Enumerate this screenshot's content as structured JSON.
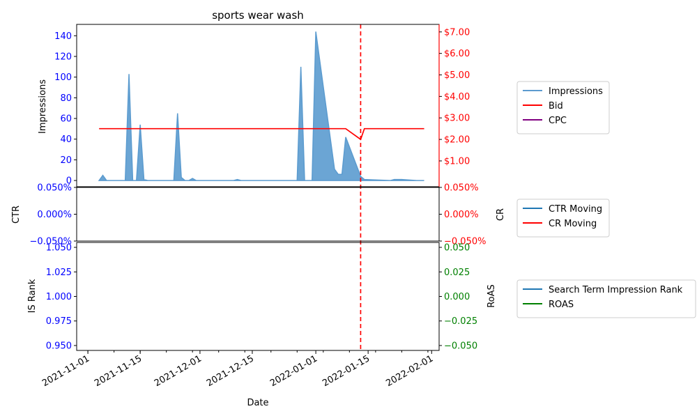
{
  "chart_data": {
    "type": "area",
    "title": "sports wear wash",
    "xlabel": "Date",
    "x_ticks": [
      "2021-11-01",
      "2021-11-15",
      "2021-12-01",
      "2021-12-15",
      "2022-01-01",
      "2022-01-15",
      "2022-02-01"
    ],
    "vline_date": "2022-01-13",
    "panels": [
      {
        "id": "top",
        "left_label": "Impressions",
        "left_ylim": [
          -6,
          151
        ],
        "left_ticks": [
          0,
          20,
          40,
          60,
          80,
          100,
          120,
          140
        ],
        "left_tick_labels": [
          "0",
          "20",
          "40",
          "60",
          "80",
          "100",
          "120",
          "140"
        ],
        "right_ylim": [
          -0.2,
          7.35
        ],
        "right_ticks": [
          1,
          2,
          3,
          4,
          5,
          6,
          7
        ],
        "right_tick_labels": [
          "$1.00",
          "$2.00",
          "$3.00",
          "$4.00",
          "$5.00",
          "$6.00",
          "$7.00"
        ],
        "series": [
          {
            "name": "Impressions",
            "type": "area",
            "color": "#5b9bcf",
            "axis": "left",
            "x": [
              "2021-11-04",
              "2021-11-05",
              "2021-11-06",
              "2021-11-07",
              "2021-11-11",
              "2021-11-12",
              "2021-11-13",
              "2021-11-14",
              "2021-11-15",
              "2021-11-16",
              "2021-11-17",
              "2021-11-24",
              "2021-11-25",
              "2021-11-26",
              "2021-11-27",
              "2021-11-28",
              "2021-11-29",
              "2021-11-30",
              "2021-12-10",
              "2021-12-11",
              "2021-12-12",
              "2021-12-27",
              "2021-12-28",
              "2021-12-29",
              "2021-12-31",
              "2022-01-01",
              "2022-01-06",
              "2022-01-07",
              "2022-01-08",
              "2022-01-09",
              "2022-01-13",
              "2022-01-14",
              "2022-01-21",
              "2022-01-22",
              "2022-01-24",
              "2022-01-28",
              "2022-01-30"
            ],
            "y": [
              0,
              5,
              0,
              0,
              0,
              103,
              0,
              0,
              54,
              1,
              0,
              0,
              65,
              3,
              0,
              0,
              2,
              0,
              0,
              1,
              0,
              0,
              110,
              0,
              0,
              144,
              11,
              6,
              6,
              42,
              4,
              1,
              0,
              1,
              1,
              0,
              0
            ]
          },
          {
            "name": "Bid",
            "type": "line",
            "color": "#ff0000",
            "axis": "right",
            "x": [
              "2021-11-04",
              "2022-01-09",
              "2022-01-13",
              "2022-01-14",
              "2022-01-30"
            ],
            "y": [
              2.5,
              2.5,
              2.0,
              2.5,
              2.5
            ]
          },
          {
            "name": "CPC",
            "type": "line",
            "color": "#800080",
            "axis": "right",
            "x": [],
            "y": []
          }
        ],
        "legend": [
          "Impressions",
          "Bid",
          "CPC"
        ]
      },
      {
        "id": "mid",
        "left_label": "CTR",
        "right_label": "CR",
        "left_ylim": [
          -0.05,
          0.05
        ],
        "left_tick_labels": [
          "−0.050%",
          "0.000%",
          "0.050%"
        ],
        "right_ylim": [
          -0.05,
          0.05
        ],
        "right_tick_labels": [
          "−0.050%",
          "0.000%",
          "0.050%"
        ],
        "series": [
          {
            "name": "CTR Moving",
            "type": "line",
            "color": "#1f77b4",
            "x": [],
            "y": []
          },
          {
            "name": "CR Moving",
            "type": "line",
            "color": "#ff0000",
            "x": [],
            "y": []
          }
        ],
        "legend": [
          "CTR Moving",
          "CR Moving"
        ]
      },
      {
        "id": "bot",
        "left_label": "IS Rank",
        "right_label": "RoAS",
        "left_ylim": [
          0.945,
          1.055
        ],
        "left_tick_labels": [
          "0.950",
          "0.975",
          "1.000",
          "1.025",
          "1.050"
        ],
        "right_ylim": [
          -0.055,
          0.055
        ],
        "right_tick_labels": [
          "−0.050",
          "−0.025",
          "0.000",
          "0.025",
          "0.050"
        ],
        "series": [
          {
            "name": "Search Term Impression Rank",
            "type": "line",
            "color": "#1f77b4",
            "x": [],
            "y": []
          },
          {
            "name": "ROAS",
            "type": "line",
            "color": "#008000",
            "x": [],
            "y": []
          }
        ],
        "legend": [
          "Search Term Impression Rank",
          "ROAS"
        ]
      }
    ],
    "colors": {
      "left_axis": "#0000ff",
      "right_axis_top": "#ff0000",
      "right_axis_bot": "#008000",
      "vline": "#ff0000"
    }
  }
}
